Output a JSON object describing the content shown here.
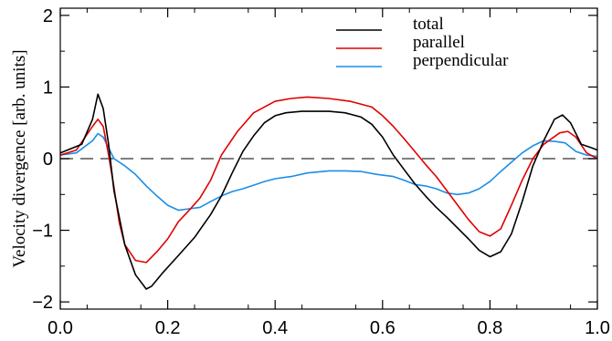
{
  "chart_data": {
    "type": "line",
    "title": "",
    "xlabel": "",
    "ylabel": "Velocity divergence [arb. units]",
    "xlim": [
      0.0,
      1.0
    ],
    "ylim": [
      -2.1,
      2.1
    ],
    "xticks": [
      0.0,
      0.2,
      0.4,
      0.6,
      0.8,
      1.0
    ],
    "xtick_labels": [
      "0.0",
      "0.2",
      "0.4",
      "0.6",
      "0.8",
      "1.0"
    ],
    "yticks": [
      -2,
      -1,
      0,
      1,
      2
    ],
    "ytick_labels": [
      "−2",
      "−1",
      "0",
      "1",
      "2"
    ],
    "grid": false,
    "legend_position": "top-right",
    "reference_line": {
      "y": 0,
      "style": "dashed",
      "color": "#555555"
    },
    "series": [
      {
        "name": "total",
        "color": "#000000",
        "x": [
          0.0,
          0.02,
          0.04,
          0.06,
          0.07,
          0.08,
          0.09,
          0.1,
          0.12,
          0.14,
          0.16,
          0.17,
          0.19,
          0.22,
          0.25,
          0.28,
          0.3,
          0.32,
          0.34,
          0.36,
          0.38,
          0.4,
          0.42,
          0.45,
          0.5,
          0.53,
          0.56,
          0.58,
          0.6,
          0.62,
          0.64,
          0.66,
          0.68,
          0.7,
          0.72,
          0.74,
          0.76,
          0.78,
          0.8,
          0.82,
          0.84,
          0.86,
          0.88,
          0.9,
          0.92,
          0.935,
          0.95,
          0.97,
          0.99,
          1.0
        ],
        "y": [
          0.08,
          0.14,
          0.2,
          0.55,
          0.9,
          0.7,
          0.2,
          -0.45,
          -1.2,
          -1.62,
          -1.82,
          -1.78,
          -1.6,
          -1.35,
          -1.1,
          -0.78,
          -0.52,
          -0.2,
          0.1,
          0.32,
          0.5,
          0.6,
          0.64,
          0.66,
          0.66,
          0.64,
          0.58,
          0.48,
          0.3,
          0.05,
          -0.15,
          -0.35,
          -0.52,
          -0.68,
          -0.82,
          -0.97,
          -1.12,
          -1.28,
          -1.37,
          -1.3,
          -1.05,
          -0.6,
          -0.1,
          0.25,
          0.55,
          0.61,
          0.5,
          0.2,
          0.15,
          0.12
        ]
      },
      {
        "name": "parallel",
        "color": "#e00000",
        "x": [
          0.0,
          0.03,
          0.06,
          0.07,
          0.08,
          0.09,
          0.1,
          0.11,
          0.12,
          0.14,
          0.16,
          0.18,
          0.2,
          0.22,
          0.24,
          0.26,
          0.28,
          0.3,
          0.33,
          0.36,
          0.38,
          0.4,
          0.43,
          0.46,
          0.5,
          0.54,
          0.58,
          0.6,
          0.62,
          0.64,
          0.66,
          0.68,
          0.7,
          0.72,
          0.74,
          0.76,
          0.78,
          0.8,
          0.82,
          0.84,
          0.86,
          0.88,
          0.9,
          0.93,
          0.945,
          0.96,
          0.98,
          1.0
        ],
        "y": [
          0.05,
          0.12,
          0.45,
          0.55,
          0.45,
          0.05,
          -0.4,
          -0.9,
          -1.2,
          -1.42,
          -1.45,
          -1.3,
          -1.12,
          -0.88,
          -0.72,
          -0.55,
          -0.3,
          0.05,
          0.38,
          0.64,
          0.72,
          0.8,
          0.84,
          0.86,
          0.84,
          0.8,
          0.72,
          0.6,
          0.45,
          0.28,
          0.1,
          -0.08,
          -0.25,
          -0.45,
          -0.65,
          -0.85,
          -1.02,
          -1.08,
          -0.98,
          -0.65,
          -0.3,
          0.0,
          0.2,
          0.36,
          0.38,
          0.3,
          0.08,
          0.0
        ]
      },
      {
        "name": "perpendicular",
        "color": "#1a8ee8",
        "x": [
          0.0,
          0.03,
          0.06,
          0.07,
          0.08,
          0.09,
          0.1,
          0.12,
          0.14,
          0.16,
          0.18,
          0.2,
          0.22,
          0.24,
          0.26,
          0.28,
          0.3,
          0.32,
          0.34,
          0.36,
          0.38,
          0.4,
          0.43,
          0.46,
          0.5,
          0.53,
          0.56,
          0.59,
          0.62,
          0.64,
          0.66,
          0.68,
          0.7,
          0.72,
          0.74,
          0.76,
          0.78,
          0.8,
          0.82,
          0.84,
          0.86,
          0.88,
          0.9,
          0.92,
          0.94,
          0.96,
          0.98,
          1.0
        ],
        "y": [
          0.05,
          0.08,
          0.25,
          0.35,
          0.3,
          0.15,
          0.0,
          -0.1,
          -0.22,
          -0.38,
          -0.52,
          -0.65,
          -0.72,
          -0.7,
          -0.68,
          -0.6,
          -0.52,
          -0.46,
          -0.42,
          -0.37,
          -0.32,
          -0.28,
          -0.25,
          -0.2,
          -0.17,
          -0.17,
          -0.18,
          -0.22,
          -0.25,
          -0.3,
          -0.36,
          -0.38,
          -0.42,
          -0.48,
          -0.5,
          -0.48,
          -0.42,
          -0.32,
          -0.18,
          -0.05,
          0.08,
          0.18,
          0.25,
          0.24,
          0.22,
          0.1,
          0.05,
          0.03
        ]
      }
    ]
  }
}
